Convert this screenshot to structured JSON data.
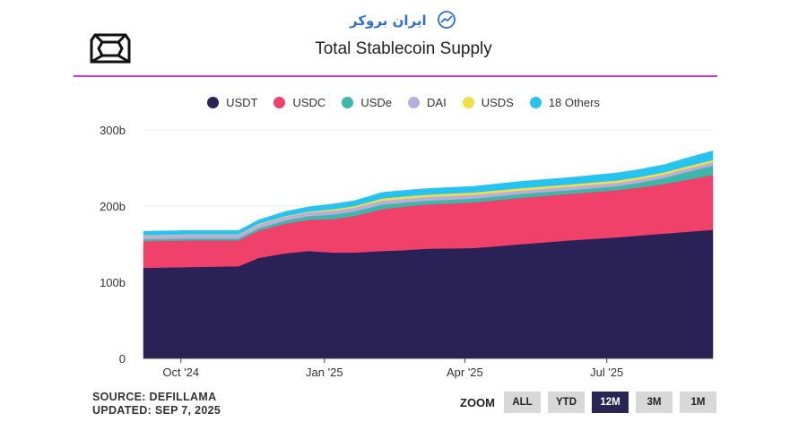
{
  "watermark": {
    "text": "ایران بروکر"
  },
  "chart_data": {
    "type": "area",
    "stacked": true,
    "title": "Total Stablecoin Supply",
    "ylim": [
      0,
      300
    ],
    "yticks": [
      {
        "value": 0,
        "label": "0"
      },
      {
        "value": 100,
        "label": "100b"
      },
      {
        "value": 200,
        "label": "200b"
      },
      {
        "value": 300,
        "label": "300b"
      }
    ],
    "xticks": [
      {
        "date": "2024-10-01",
        "label": "Oct '24"
      },
      {
        "date": "2025-01-01",
        "label": "Jan '25"
      },
      {
        "date": "2025-04-01",
        "label": "Apr '25"
      },
      {
        "date": "2025-07-01",
        "label": "Jul '25"
      }
    ],
    "x": [
      "2024-09-07",
      "2024-10-07",
      "2024-11-07",
      "2024-11-20",
      "2024-12-07",
      "2024-12-22",
      "2025-01-07",
      "2025-01-20",
      "2025-02-07",
      "2025-02-20",
      "2025-03-07",
      "2025-04-07",
      "2025-05-07",
      "2025-06-07",
      "2025-07-07",
      "2025-07-20",
      "2025-08-07",
      "2025-08-20",
      "2025-09-07"
    ],
    "series": [
      {
        "name": "USDT",
        "color": "#2a2157",
        "values": [
          119,
          120,
          121,
          132,
          138,
          141,
          139,
          139,
          141,
          142,
          144,
          145,
          150,
          155,
          159,
          161,
          164,
          166,
          169
        ]
      },
      {
        "name": "USDC",
        "color": "#f0416a",
        "values": [
          35,
          35,
          34,
          36,
          39,
          41,
          44,
          48,
          55,
          57,
          58,
          60,
          61,
          61,
          62,
          63,
          65,
          68,
          72
        ]
      },
      {
        "name": "USDe",
        "color": "#3db7a8",
        "values": [
          2.5,
          2.5,
          2.5,
          3,
          4,
          5,
          6,
          6,
          6,
          5.5,
          5,
          5,
          5,
          5,
          5,
          6,
          8,
          10,
          12
        ]
      },
      {
        "name": "DAI",
        "color": "#b8addb",
        "values": [
          5,
          5,
          5,
          5,
          5,
          5,
          5,
          5,
          5,
          5,
          5,
          5,
          4.5,
          4.5,
          4.5,
          4.5,
          4.5,
          4.5,
          4.5
        ]
      },
      {
        "name": "USDS",
        "color": "#f4df43",
        "values": [
          0.5,
          0.5,
          0.5,
          1,
          1,
          1,
          2,
          2,
          3,
          3,
          3,
          3,
          3,
          3,
          3,
          3,
          3,
          3,
          3
        ]
      },
      {
        "name": "18 Others",
        "color": "#27c3f0",
        "values": [
          5,
          5,
          5,
          5,
          6,
          6,
          7,
          7,
          8,
          8,
          8,
          8,
          9,
          9,
          10,
          10,
          10,
          11,
          12
        ]
      }
    ]
  },
  "footer": {
    "source": "SOURCE: DEFILLAMA",
    "updated": "UPDATED: SEP 7, 2025"
  },
  "zoom": {
    "label": "ZOOM",
    "buttons": [
      {
        "label": "ALL",
        "active": false
      },
      {
        "label": "YTD",
        "active": false
      },
      {
        "label": "12M",
        "active": true
      },
      {
        "label": "3M",
        "active": false
      },
      {
        "label": "1M",
        "active": false
      }
    ]
  }
}
